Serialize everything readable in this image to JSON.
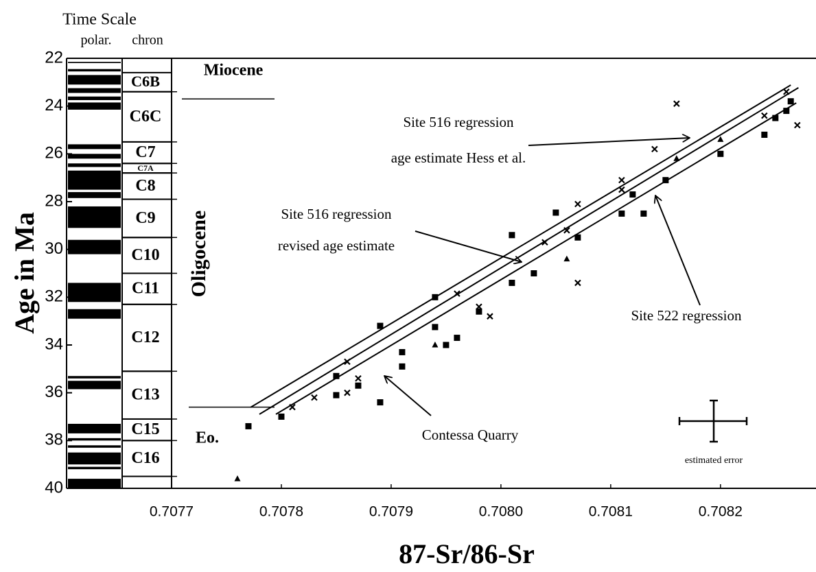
{
  "chart_data": {
    "type": "scatter",
    "header": "Time Scale",
    "polarity_label": "polar.",
    "chron_label": "chron",
    "y_label": "Age in Ma",
    "x_label": "87-Sr/86-Sr",
    "xlim": [
      0.7077,
      0.708287
    ],
    "ylim": [
      22,
      40
    ],
    "xticks": [
      0.7077,
      0.7078,
      0.7079,
      {
        "value": 0.708,
        "label": "0.7080"
      },
      0.7081,
      0.7082
    ],
    "yticks": [
      22,
      24,
      26,
      28,
      30,
      32,
      34,
      36,
      38,
      40
    ],
    "y_inverted": true,
    "color": "#000000",
    "polarity": [
      [
        22.15,
        22.2
      ],
      [
        22.45,
        22.55
      ],
      [
        22.7,
        23.1
      ],
      [
        23.25,
        23.45
      ],
      [
        23.6,
        23.75
      ],
      [
        23.85,
        24.15
      ],
      [
        25.6,
        25.8
      ],
      [
        26.0,
        26.2
      ],
      [
        26.4,
        26.55
      ],
      [
        26.7,
        27.5
      ],
      [
        27.6,
        27.85
      ],
      [
        28.2,
        29.1
      ],
      [
        29.6,
        30.2
      ],
      [
        31.4,
        32.2
      ],
      [
        32.5,
        32.9
      ],
      [
        35.3,
        35.4
      ],
      [
        35.5,
        35.85
      ],
      [
        37.3,
        37.7
      ],
      [
        37.9,
        38.0
      ],
      [
        38.2,
        38.3
      ],
      [
        38.5,
        39.0
      ],
      [
        39.1,
        39.2
      ],
      [
        39.6,
        40.0
      ]
    ],
    "chrons": [
      {
        "label": "C6B",
        "top": 22.6,
        "bottom": 23.4
      },
      {
        "label": "C6C",
        "top": 23.4,
        "bottom": 25.5
      },
      {
        "label": "C7",
        "top": 25.5,
        "bottom": 26.4
      },
      {
        "label": "C7A",
        "top": 26.4,
        "bottom": 26.8
      },
      {
        "label": "C8",
        "top": 26.8,
        "bottom": 27.9
      },
      {
        "label": "C9",
        "top": 27.9,
        "bottom": 29.5
      },
      {
        "label": "C10",
        "top": 29.5,
        "bottom": 31.0
      },
      {
        "label": "C11",
        "top": 31.0,
        "bottom": 32.3
      },
      {
        "label": "C12",
        "top": 32.3,
        "bottom": 35.1
      },
      {
        "label": "C13",
        "top": 35.1,
        "bottom": 37.1
      },
      {
        "label": "C15",
        "top": 37.1,
        "bottom": 38.0
      },
      {
        "label": "C16",
        "top": 38.0,
        "bottom": 39.5
      }
    ],
    "epochs": [
      "Miocene",
      "Oligocene",
      "Eo."
    ],
    "epoch_boundaries": [
      23.7,
      36.6
    ],
    "series": [
      {
        "marker": "square",
        "x": [
          0.70777,
          0.7078,
          0.70785,
          0.70785,
          0.70787,
          0.70789,
          0.70789,
          0.70791,
          0.70791,
          0.70794,
          0.70794,
          0.70795,
          0.70796,
          0.70798,
          0.70801,
          0.70801,
          0.70803,
          0.70805,
          0.70807,
          0.70811,
          0.70812,
          0.70813,
          0.70815,
          0.7082,
          0.70824,
          0.70825,
          0.70826,
          0.708264
        ],
        "y": [
          37.4,
          37.0,
          36.1,
          35.3,
          35.7,
          36.4,
          33.2,
          34.9,
          34.3,
          32.0,
          33.25,
          34.0,
          33.7,
          32.6,
          31.4,
          29.4,
          31.0,
          28.46,
          29.5,
          28.5,
          27.7,
          28.5,
          27.1,
          26.0,
          25.2,
          24.5,
          24.2,
          23.8
        ]
      },
      {
        "marker": "cross",
        "x": [
          0.70781,
          0.70783,
          0.70786,
          0.70786,
          0.70787,
          0.70796,
          0.70798,
          0.70799,
          0.70804,
          0.70806,
          0.70807,
          0.70807,
          0.70811,
          0.70811,
          0.70814,
          0.70816,
          0.70824,
          0.70826,
          0.70827
        ],
        "y": [
          36.6,
          36.2,
          36.0,
          34.7,
          35.4,
          31.85,
          32.4,
          32.8,
          29.7,
          29.2,
          28.1,
          31.4,
          27.1,
          27.5,
          25.8,
          23.9,
          24.4,
          23.4,
          24.8
        ]
      },
      {
        "marker": "triangle",
        "x": [
          0.70776,
          0.70794,
          0.70806,
          0.70816,
          0.7082
        ],
        "y": [
          39.6,
          34.0,
          30.4,
          26.2,
          25.4
        ]
      }
    ],
    "lines": [
      {
        "x": [
          0.707772,
          0.708264
        ],
        "y": [
          36.61,
          23.12
        ]
      },
      {
        "x": [
          0.70778,
          0.708271
        ],
        "y": [
          36.9,
          23.23
        ]
      },
      {
        "x": [
          0.707795,
          0.708269
        ],
        "y": [
          36.9,
          23.87
        ]
      }
    ],
    "annotations": [
      "Site 516 regression",
      "age estimate Hess et al.",
      "Site 516 regression",
      "revised age estimate",
      "Site 522 regression",
      "Contessa Quarry",
      "estimated error"
    ]
  }
}
